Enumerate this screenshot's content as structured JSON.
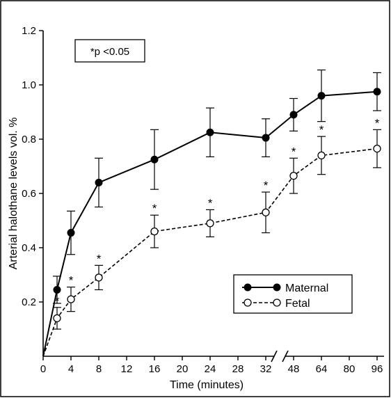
{
  "chart_data": {
    "type": "line",
    "title": "",
    "xlabel": "Time (minutes)",
    "ylabel": "Arterial halothane levels vol. %",
    "x_tick_labels": [
      "0",
      "4",
      "8",
      "12",
      "16",
      "20",
      "24",
      "28",
      "32",
      "48",
      "64",
      "80",
      "96"
    ],
    "x_positions": [
      0,
      4,
      8,
      12,
      16,
      20,
      24,
      28,
      32,
      48,
      64,
      80,
      96
    ],
    "y_ticks": [
      0.2,
      0.4,
      0.6,
      0.8,
      1.0,
      1.2
    ],
    "y_tick_labels": [
      "0.2",
      "0.4",
      "0.6",
      "0.8",
      "1.0",
      "1.2"
    ],
    "ylim": [
      0,
      1.2
    ],
    "axis_break": "//",
    "annotation": "*p <0.05",
    "significance_marker": "*",
    "legend": {
      "position": "bottom-right"
    },
    "series": [
      {
        "name": "Maternal",
        "style": "solid-filled",
        "color": "#000000",
        "points": [
          {
            "x": 0,
            "y": 0.0,
            "err": 0
          },
          {
            "x": 2,
            "y": 0.245,
            "err": 0.05
          },
          {
            "x": 4,
            "y": 0.455,
            "err": 0.08
          },
          {
            "x": 8,
            "y": 0.64,
            "err": 0.09
          },
          {
            "x": 16,
            "y": 0.725,
            "err": 0.11
          },
          {
            "x": 24,
            "y": 0.825,
            "err": 0.09
          },
          {
            "x": 32,
            "y": 0.805,
            "err": 0.07
          },
          {
            "x": 48,
            "y": 0.89,
            "err": 0.06
          },
          {
            "x": 64,
            "y": 0.96,
            "err": 0.095
          },
          {
            "x": 96,
            "y": 0.975,
            "err": 0.07
          }
        ]
      },
      {
        "name": "Fetal",
        "style": "dashed-open",
        "color": "#000000",
        "points": [
          {
            "x": 0,
            "y": 0.0,
            "err": 0,
            "sig": false
          },
          {
            "x": 2,
            "y": 0.14,
            "err": 0.04,
            "sig": true
          },
          {
            "x": 4,
            "y": 0.21,
            "err": 0.045,
            "sig": true
          },
          {
            "x": 8,
            "y": 0.29,
            "err": 0.045,
            "sig": true
          },
          {
            "x": 16,
            "y": 0.46,
            "err": 0.06,
            "sig": true
          },
          {
            "x": 24,
            "y": 0.49,
            "err": 0.05,
            "sig": true
          },
          {
            "x": 32,
            "y": 0.53,
            "err": 0.075,
            "sig": true
          },
          {
            "x": 48,
            "y": 0.665,
            "err": 0.065,
            "sig": true
          },
          {
            "x": 64,
            "y": 0.74,
            "err": 0.07,
            "sig": true
          },
          {
            "x": 96,
            "y": 0.765,
            "err": 0.07,
            "sig": true
          }
        ]
      }
    ]
  }
}
